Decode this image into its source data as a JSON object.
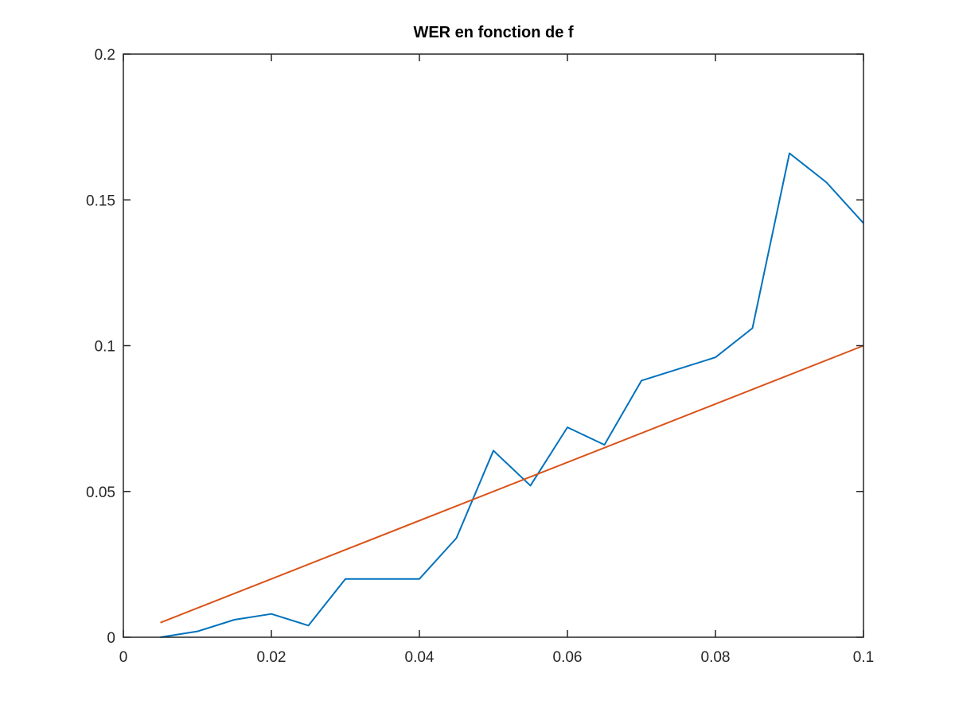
{
  "chart_data": {
    "type": "line",
    "title": "WER en fonction de f",
    "xlabel": "",
    "ylabel": "",
    "xlim": [
      0,
      0.1
    ],
    "ylim": [
      0,
      0.2
    ],
    "x_ticks": [
      0,
      0.02,
      0.04,
      0.06,
      0.08,
      0.1
    ],
    "x_tick_labels": [
      "0",
      "0.02",
      "0.04",
      "0.06",
      "0.08",
      "0.1"
    ],
    "y_ticks": [
      0,
      0.05,
      0.1,
      0.15,
      0.2
    ],
    "y_tick_labels": [
      "0",
      "0.05",
      "0.1",
      "0.15",
      "0.2"
    ],
    "grid": false,
    "box": true,
    "series": [
      {
        "color": "#0072bd",
        "x": [
          0.005,
          0.01,
          0.015,
          0.02,
          0.025,
          0.03,
          0.035,
          0.04,
          0.045,
          0.05,
          0.055,
          0.06,
          0.065,
          0.07,
          0.075,
          0.08,
          0.085,
          0.09,
          0.095,
          0.1
        ],
        "values": [
          0.0,
          0.002,
          0.006,
          0.008,
          0.004,
          0.02,
          0.02,
          0.02,
          0.034,
          0.064,
          0.052,
          0.072,
          0.066,
          0.088,
          0.092,
          0.096,
          0.106,
          0.166,
          0.156,
          0.142
        ]
      },
      {
        "color": "#d95319",
        "x": [
          0.005,
          0.1
        ],
        "values": [
          0.005,
          0.1
        ]
      }
    ]
  }
}
